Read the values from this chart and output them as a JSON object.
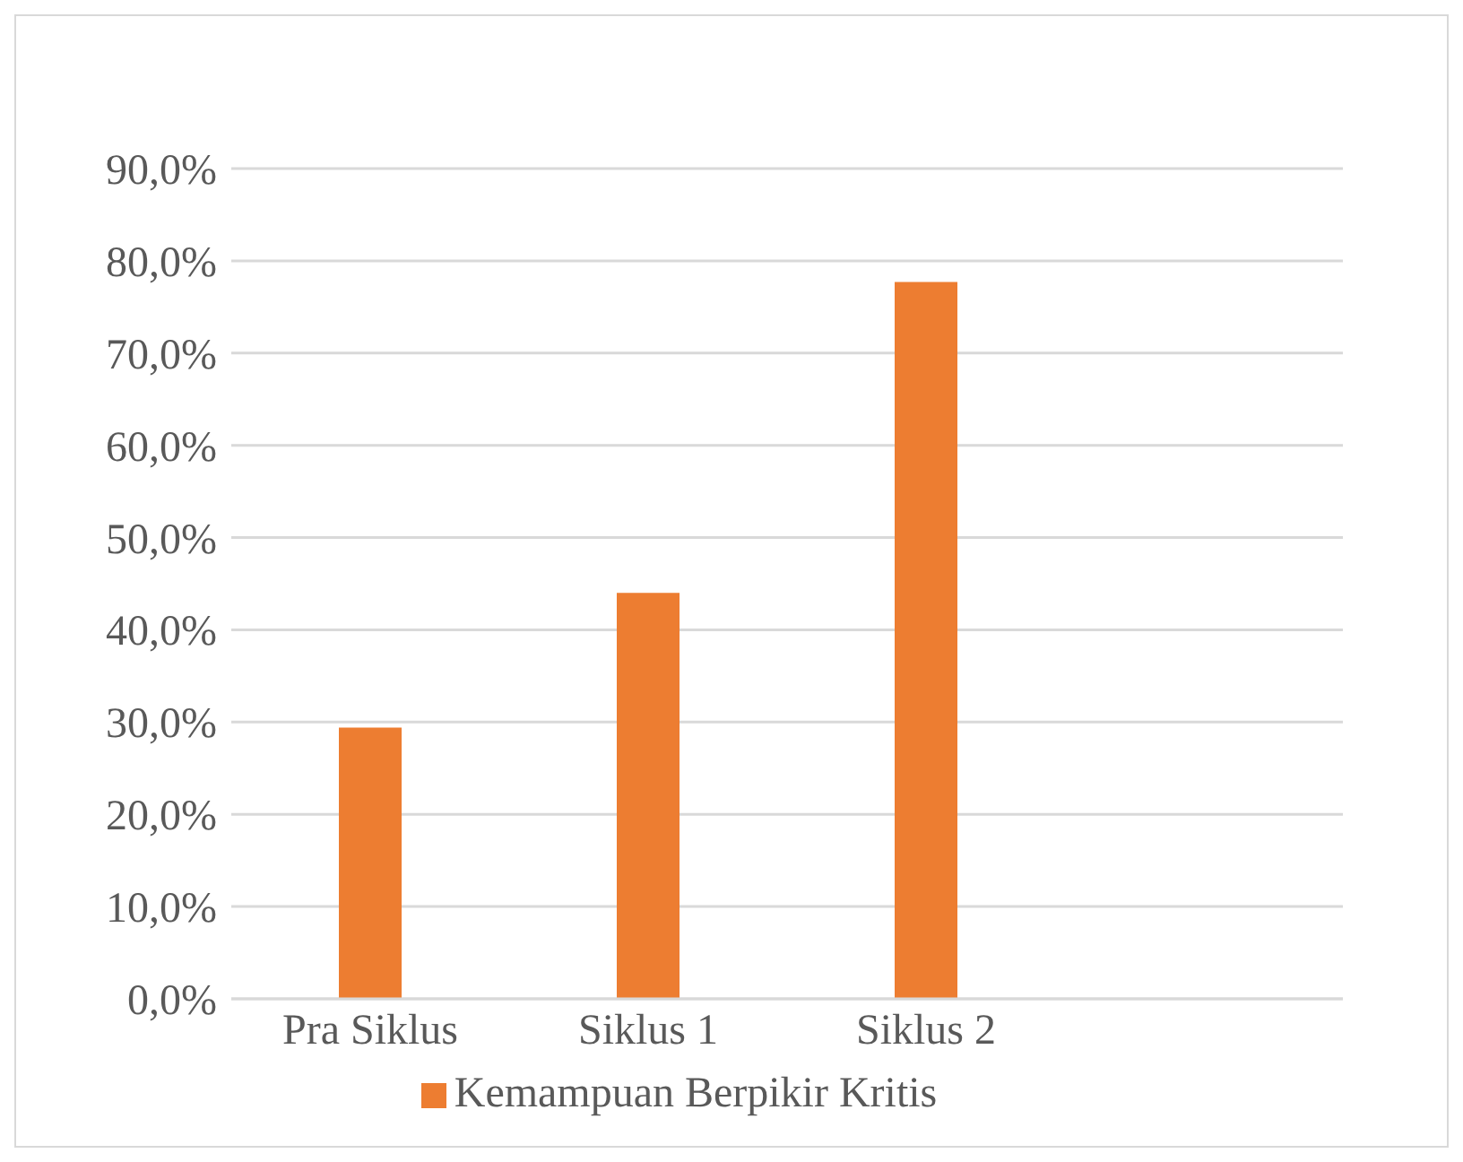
{
  "chart_data": {
    "type": "bar",
    "categories": [
      "Pra Siklus",
      "Siklus 1",
      "Siklus 2",
      null
    ],
    "series": [
      {
        "name": "Kemampuan Berpikir Kritis",
        "color": "#ed7d31",
        "values": [
          29.4,
          44.0,
          77.7,
          null
        ]
      }
    ],
    "ylim": [
      0,
      90
    ],
    "yticks": [
      {
        "value": 0,
        "label": "0,0%"
      },
      {
        "value": 10,
        "label": "10,0%"
      },
      {
        "value": 20,
        "label": "20,0%"
      },
      {
        "value": 30,
        "label": "30,0%"
      },
      {
        "value": 40,
        "label": "40,0%"
      },
      {
        "value": 50,
        "label": "50,0%"
      },
      {
        "value": 60,
        "label": "60,0%"
      },
      {
        "value": 70,
        "label": "70,0%"
      },
      {
        "value": 80,
        "label": "80,0%"
      },
      {
        "value": 90,
        "label": "90,0%"
      }
    ],
    "grid": "y",
    "legend": "bottom"
  }
}
